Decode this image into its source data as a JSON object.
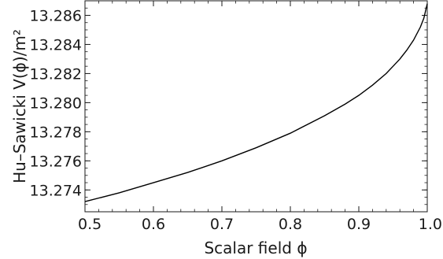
{
  "chart_data": {
    "type": "line",
    "title": "",
    "xlabel": "Scalar field ϕ",
    "ylabel": "Hu–Sawicki V(ϕ)/m²",
    "xlim": [
      0.5,
      1.0
    ],
    "ylim": [
      13.2725,
      13.287
    ],
    "x_ticks": [
      "0.5",
      "0.6",
      "0.7",
      "0.8",
      "0.9",
      "1.0"
    ],
    "y_ticks": [
      "13.274",
      "13.276",
      "13.278",
      "13.280",
      "13.282",
      "13.284",
      "13.286"
    ],
    "grid": false,
    "series": [
      {
        "x": [
          0.5,
          0.55,
          0.6,
          0.65,
          0.7,
          0.75,
          0.8,
          0.85,
          0.88,
          0.9,
          0.92,
          0.94,
          0.95,
          0.96,
          0.97,
          0.98,
          0.99,
          0.995,
          1.0
        ],
        "y": [
          13.2732,
          13.2738,
          13.2745,
          13.2752,
          13.276,
          13.2769,
          13.2779,
          13.2791,
          13.2799,
          13.2805,
          13.2812,
          13.282,
          13.2825,
          13.283,
          13.2836,
          13.2843,
          13.2852,
          13.2858,
          13.2868
        ]
      }
    ]
  }
}
